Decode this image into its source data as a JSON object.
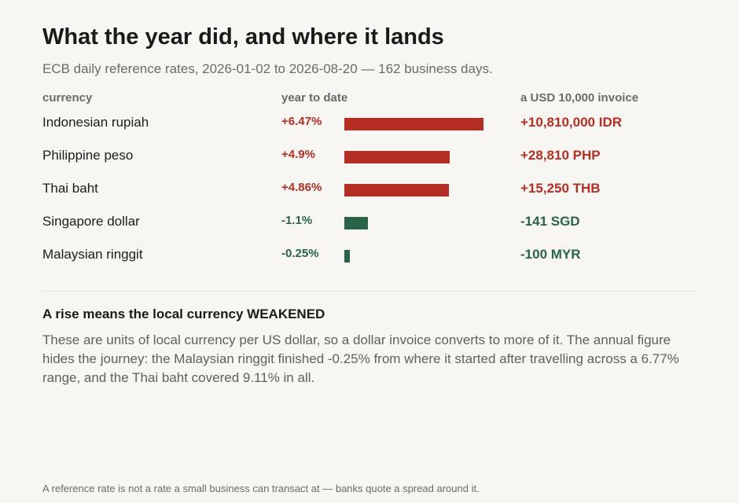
{
  "title": "What the year did, and where it lands",
  "subtitle": "ECB daily reference rates, 2026-01-02 to 2026-08-20 — 162 business days.",
  "columns": {
    "currency": "currency",
    "ytd": "year to date",
    "invoice": "a USD 10,000 invoice"
  },
  "colors": {
    "rise": "#b52e23",
    "fall": "#2a6447"
  },
  "chart_data": {
    "type": "bar",
    "orientation": "horizontal",
    "title": "What the year did, and where it lands",
    "subtitle": "ECB daily reference rates, 2026-01-02 to 2026-08-20 — 162 business days.",
    "categories": [
      "Indonesian rupiah",
      "Philippine peso",
      "Thai baht",
      "Singapore dollar",
      "Malaysian ringgit"
    ],
    "values": [
      6.47,
      4.9,
      4.86,
      -1.1,
      -0.25
    ],
    "value_labels": [
      "+6.47%",
      "+4.9%",
      "+4.86%",
      "-1.1%",
      "-0.25%"
    ],
    "invoice_labels": [
      "+10,810,000 IDR",
      "+28,810 PHP",
      "+15,250 THB",
      "-141 SGD",
      "-100 MYR"
    ],
    "grid": false,
    "legend": "none"
  },
  "note": {
    "heading": "A rise means the local currency WEAKENED",
    "body": "These are units of local currency per US dollar, so a dollar invoice converts to more of it. The annual figure hides the journey: the Malaysian ringgit finished -0.25% from where it started after travelling across a 6.77% range, and the Thai baht covered 9.11% in all."
  },
  "footer": "A reference rate is not a rate a small business can transact at — banks quote a spread around it."
}
